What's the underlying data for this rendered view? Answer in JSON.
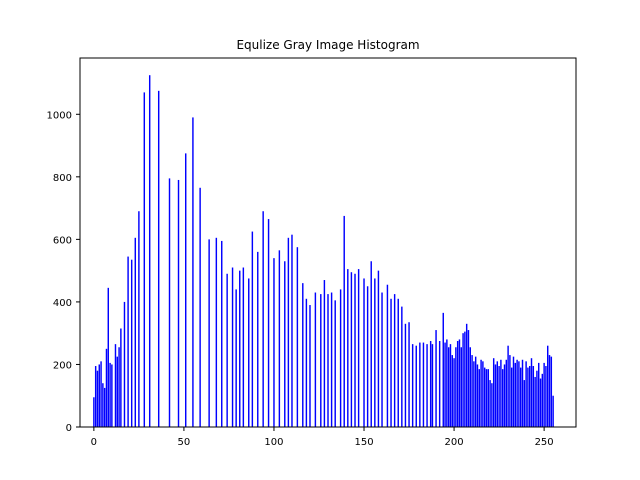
{
  "chart_data": {
    "type": "bar",
    "title": "Equlize Gray Image Histogram",
    "xlabel": "",
    "ylabel": "",
    "xlim": [
      -7.7,
      267.7
    ],
    "ylim": [
      0,
      1180
    ],
    "xticks": [
      0,
      50,
      100,
      150,
      200,
      250
    ],
    "yticks": [
      0,
      200,
      400,
      600,
      800,
      1000
    ],
    "grid": false,
    "legend": "none",
    "bar_color": "#0000ff",
    "series": [
      {
        "x": [
          0,
          1,
          2,
          3,
          4,
          5,
          6,
          7,
          8,
          9,
          10,
          12,
          13,
          14,
          15,
          17,
          19,
          21,
          23,
          25,
          28,
          31,
          36,
          42,
          47,
          51,
          55,
          59,
          64,
          68,
          71,
          74,
          77,
          79,
          81,
          83,
          86,
          88,
          91,
          94,
          97,
          100,
          103,
          106,
          108,
          110,
          113,
          116,
          118,
          120,
          123,
          126,
          128,
          130,
          132,
          134,
          137,
          139,
          141,
          143,
          145,
          147,
          150,
          152,
          154,
          156,
          158,
          160,
          163,
          165,
          167,
          169,
          171,
          173,
          175,
          177,
          179,
          181,
          183,
          185,
          187,
          188,
          190,
          192,
          194,
          195,
          196,
          197,
          198,
          199,
          200,
          201,
          202,
          203,
          204,
          205,
          206,
          207,
          208,
          209,
          210,
          211,
          212,
          213,
          214,
          215,
          216,
          217,
          218,
          219,
          220,
          221,
          222,
          223,
          224,
          225,
          226,
          227,
          228,
          229,
          230,
          231,
          232,
          233,
          234,
          235,
          236,
          237,
          238,
          239,
          240,
          241,
          242,
          243,
          244,
          245,
          246,
          247,
          248,
          249,
          250,
          251,
          252,
          253,
          254,
          255
        ],
        "y": [
          95,
          195,
          180,
          200,
          210,
          140,
          125,
          250,
          445,
          205,
          200,
          265,
          225,
          255,
          315,
          400,
          545,
          535,
          605,
          690,
          1070,
          1125,
          1075,
          795,
          790,
          875,
          990,
          765,
          600,
          605,
          595,
          490,
          510,
          440,
          500,
          510,
          475,
          625,
          560,
          690,
          665,
          540,
          565,
          530,
          605,
          615,
          575,
          460,
          410,
          390,
          430,
          425,
          470,
          425,
          430,
          405,
          440,
          675,
          505,
          495,
          490,
          505,
          475,
          450,
          530,
          475,
          500,
          430,
          455,
          410,
          425,
          410,
          385,
          330,
          335,
          265,
          260,
          270,
          270,
          265,
          275,
          265,
          310,
          275,
          365,
          270,
          280,
          255,
          265,
          230,
          220,
          255,
          275,
          280,
          255,
          300,
          305,
          330,
          310,
          255,
          230,
          210,
          225,
          200,
          185,
          215,
          210,
          190,
          185,
          185,
          150,
          140,
          220,
          200,
          210,
          195,
          215,
          185,
          200,
          215,
          260,
          230,
          190,
          225,
          205,
          215,
          210,
          190,
          215,
          150,
          210,
          190,
          195,
          220,
          195,
          160,
          180,
          205,
          155,
          170,
          205,
          195,
          260,
          230,
          225,
          100
        ]
      }
    ]
  }
}
